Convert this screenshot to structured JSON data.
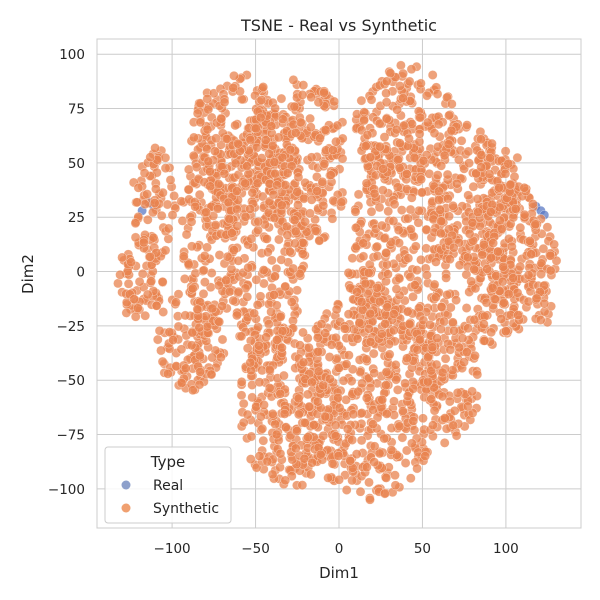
{
  "chart_data": {
    "type": "scatter",
    "title": "TSNE - Real vs Synthetic",
    "xlabel": "Dim1",
    "ylabel": "Dim2",
    "xlim": [
      -145,
      145
    ],
    "ylim": [
      -118,
      107
    ],
    "xticks": [
      -100,
      -50,
      0,
      50,
      100
    ],
    "yticks": [
      -100,
      -75,
      -50,
      -25,
      0,
      25,
      50,
      75,
      100
    ],
    "xtick_labels": [
      "−100",
      "−50",
      "0",
      "50",
      "100"
    ],
    "ytick_labels": [
      "−100",
      "−75",
      "−50",
      "−25",
      "0",
      "25",
      "50",
      "75",
      "100"
    ],
    "grid": true,
    "legend": {
      "title": "Type",
      "placement": "lower-left",
      "entries": [
        {
          "label": "Real",
          "color": "#8da0cb"
        },
        {
          "label": "Synthetic",
          "color": "#f0a070"
        }
      ]
    },
    "series": [
      {
        "name": "Real",
        "color": "#5b79c4",
        "points": [
          [
            -114,
            32
          ],
          [
            -111,
            30
          ],
          [
            118,
            30
          ],
          [
            121,
            28
          ],
          [
            123,
            26
          ],
          [
            -118,
            28
          ]
        ]
      },
      {
        "name": "Synthetic",
        "color": "#e8834f",
        "clusters": [
          {
            "x_range": [
              -135,
              -105
            ],
            "y_range": [
              -22,
              12
            ]
          },
          {
            "x_range": [
              -125,
              -98
            ],
            "y_range": [
              5,
              58
            ]
          },
          {
            "x_range": [
              -110,
              -68
            ],
            "y_range": [
              -55,
              -8
            ]
          },
          {
            "x_range": [
              -95,
              -60
            ],
            "y_range": [
              -30,
              72
            ]
          },
          {
            "x_range": [
              -88,
              -35
            ],
            "y_range": [
              30,
              92
            ]
          },
          {
            "x_range": [
              -68,
              -20
            ],
            "y_range": [
              -45,
              80
            ]
          },
          {
            "x_range": [
              -45,
              5
            ],
            "y_range": [
              10,
              90
            ]
          },
          {
            "x_range": [
              -60,
              0
            ],
            "y_range": [
              -100,
              -25
            ]
          },
          {
            "x_range": [
              -25,
              60
            ],
            "y_range": [
              -105,
              -10
            ]
          },
          {
            "x_range": [
              5,
              65
            ],
            "y_range": [
              -45,
              60
            ]
          },
          {
            "x_range": [
              10,
              70
            ],
            "y_range": [
              40,
              95
            ]
          },
          {
            "x_range": [
              50,
              85
            ],
            "y_range": [
              -80,
              -10
            ]
          },
          {
            "x_range": [
              55,
              95
            ],
            "y_range": [
              0,
              70
            ]
          },
          {
            "x_range": [
              75,
              110
            ],
            "y_range": [
              -35,
              60
            ]
          },
          {
            "x_range": [
              90,
              118
            ],
            "y_range": [
              -30,
              55
            ]
          },
          {
            "x_range": [
              112,
              132
            ],
            "y_range": [
              -25,
              28
            ]
          }
        ]
      }
    ]
  }
}
